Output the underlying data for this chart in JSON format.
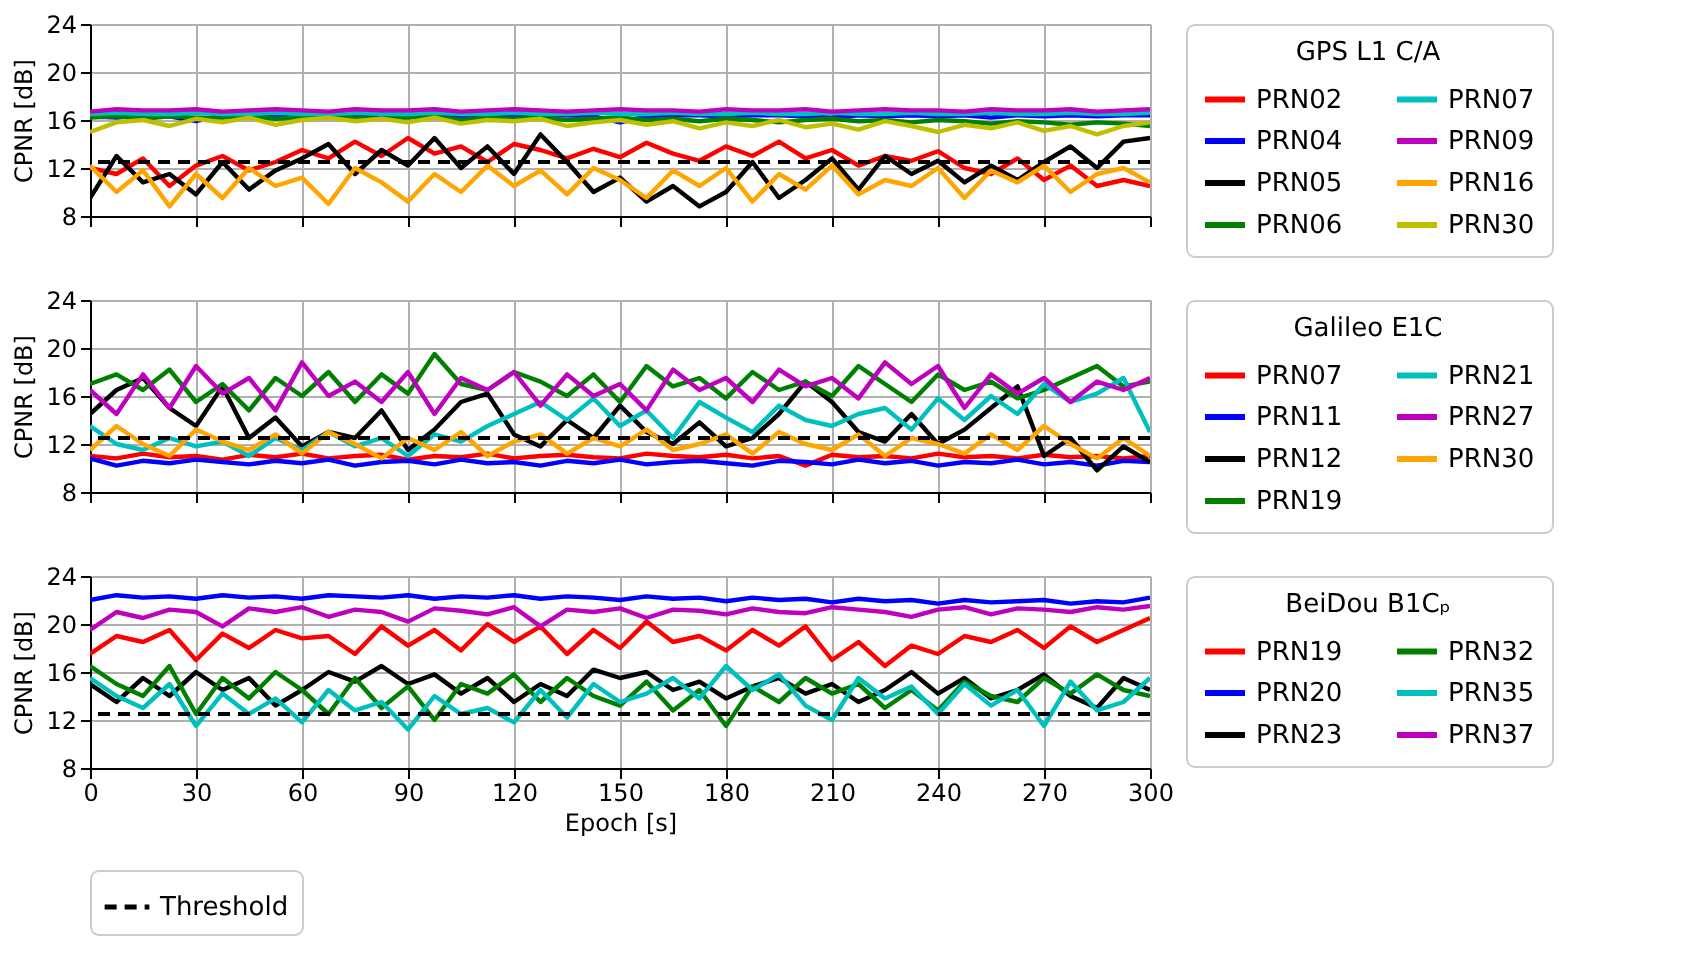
{
  "chart_data": [
    {
      "type": "line",
      "ylabel": "CPNR [dB]",
      "legend_title": "GPS L1 C/A",
      "legend": "right",
      "grid": true,
      "tick_labels": "y",
      "marker": "none",
      "line_style": "solid",
      "xlim": [
        0,
        300
      ],
      "xticks": [
        0,
        30,
        60,
        90,
        120,
        150,
        180,
        210,
        240,
        270,
        300
      ],
      "ylim": [
        8,
        24
      ],
      "yticks": [
        8,
        12,
        16,
        20,
        24
      ],
      "x": [
        0,
        7.5,
        15,
        22.5,
        30,
        37.5,
        45,
        52.5,
        60,
        67.5,
        75,
        82.5,
        90,
        97.5,
        105,
        112.5,
        120,
        127.5,
        135,
        142.5,
        150,
        157.5,
        165,
        172.5,
        180,
        187.5,
        195,
        202.5,
        210,
        217.5,
        225,
        232.5,
        240,
        247.5,
        255,
        262.5,
        270,
        277.5,
        285,
        292.5,
        300
      ],
      "ref_lines": [
        {
          "axis": "y",
          "value": 12.5,
          "color": "#000000",
          "line_style": "dashed"
        }
      ],
      "series": [
        {
          "name": "PRN02",
          "color": "#ff0000",
          "values": [
            12.0,
            11.5,
            12.8,
            10.5,
            12.2,
            13.0,
            11.8,
            12.5,
            13.5,
            12.8,
            14.2,
            13.0,
            14.5,
            13.2,
            13.8,
            12.5,
            14.0,
            13.5,
            12.8,
            13.6,
            12.9,
            14.1,
            13.2,
            12.6,
            13.8,
            13.0,
            14.2,
            12.8,
            13.5,
            12.2,
            13.0,
            12.6,
            13.4,
            12.0,
            11.5,
            12.8,
            11.0,
            12.2,
            10.5,
            11.0,
            10.5
          ]
        },
        {
          "name": "PRN04",
          "color": "#0000ff",
          "values": [
            16.3,
            16.2,
            16.4,
            16.3,
            15.9,
            16.4,
            16.3,
            16.4,
            16.3,
            16.4,
            16.4,
            16.3,
            16.4,
            16.4,
            16.3,
            16.4,
            16.3,
            16.4,
            16.4,
            16.3,
            15.8,
            16.3,
            16.4,
            16.4,
            16.3,
            16.4,
            16.4,
            16.3,
            16.2,
            16.4,
            16.3,
            16.4,
            16.3,
            16.4,
            16.2,
            16.4,
            16.3,
            16.4,
            16.3,
            16.4,
            16.4
          ]
        },
        {
          "name": "PRN05",
          "color": "#000000",
          "values": [
            9.5,
            13.0,
            10.8,
            11.5,
            9.8,
            12.5,
            10.2,
            11.8,
            12.8,
            14.0,
            11.5,
            13.5,
            12.2,
            14.5,
            12.0,
            13.8,
            11.5,
            14.8,
            12.5,
            10.0,
            11.2,
            9.2,
            10.5,
            8.8,
            10.0,
            12.5,
            9.5,
            11.0,
            12.8,
            10.2,
            13.0,
            11.5,
            12.6,
            10.8,
            12.2,
            11.0,
            12.5,
            13.8,
            12.0,
            14.2,
            14.5
          ]
        },
        {
          "name": "PRN06",
          "color": "#008000",
          "values": [
            16.2,
            16.3,
            16.1,
            16.3,
            16.2,
            16.2,
            16.3,
            16.1,
            16.2,
            16.3,
            16.2,
            16.1,
            16.2,
            16.3,
            16.0,
            16.2,
            16.1,
            16.2,
            16.0,
            16.1,
            16.2,
            16.0,
            16.1,
            15.9,
            16.1,
            16.0,
            15.8,
            16.0,
            16.1,
            15.9,
            16.0,
            15.8,
            16.0,
            15.9,
            15.7,
            15.9,
            15.8,
            15.6,
            15.8,
            15.7,
            15.5
          ]
        },
        {
          "name": "PRN07",
          "color": "#00bfbf",
          "values": [
            16.5,
            16.6,
            16.5,
            16.5,
            16.6,
            16.5,
            16.5,
            16.6,
            16.5,
            16.5,
            16.6,
            16.5,
            16.5,
            16.6,
            16.5,
            16.5,
            16.6,
            16.5,
            16.5,
            16.6,
            16.5,
            16.5,
            16.6,
            16.5,
            16.5,
            16.6,
            16.5,
            16.5,
            16.6,
            16.5,
            16.5,
            16.6,
            16.5,
            16.5,
            16.6,
            16.5,
            16.5,
            16.6,
            16.5,
            16.5,
            16.6
          ]
        },
        {
          "name": "PRN09",
          "color": "#bf00bf",
          "values": [
            16.7,
            16.9,
            16.8,
            16.8,
            16.9,
            16.7,
            16.8,
            16.9,
            16.8,
            16.7,
            16.9,
            16.8,
            16.8,
            16.9,
            16.7,
            16.8,
            16.9,
            16.8,
            16.7,
            16.8,
            16.9,
            16.8,
            16.8,
            16.7,
            16.9,
            16.8,
            16.8,
            16.9,
            16.7,
            16.8,
            16.9,
            16.8,
            16.8,
            16.7,
            16.9,
            16.8,
            16.8,
            16.9,
            16.7,
            16.8,
            16.9
          ]
        },
        {
          "name": "PRN16",
          "color": "#ffa500",
          "values": [
            12.2,
            10.0,
            11.8,
            8.8,
            11.5,
            9.5,
            12.0,
            10.5,
            11.2,
            9.0,
            12.0,
            10.8,
            9.2,
            11.5,
            10.0,
            12.2,
            10.5,
            11.8,
            9.8,
            12.0,
            11.0,
            9.5,
            11.8,
            10.5,
            12.0,
            9.2,
            11.5,
            10.2,
            12.2,
            9.8,
            11.0,
            10.5,
            12.0,
            9.5,
            11.8,
            10.8,
            12.2,
            10.0,
            11.5,
            12.0,
            10.8
          ]
        },
        {
          "name": "PRN30",
          "color": "#bfbf00",
          "values": [
            15.0,
            15.8,
            16.0,
            15.5,
            16.1,
            15.8,
            16.2,
            15.6,
            16.0,
            16.2,
            15.9,
            16.1,
            15.8,
            16.2,
            15.7,
            16.0,
            15.9,
            16.1,
            15.5,
            15.8,
            16.0,
            15.6,
            15.9,
            15.3,
            15.8,
            15.5,
            16.0,
            15.4,
            15.7,
            15.2,
            15.9,
            15.5,
            15.0,
            15.6,
            15.3,
            15.8,
            15.1,
            15.5,
            14.8,
            15.5,
            15.8
          ]
        }
      ]
    },
    {
      "type": "line",
      "ylabel": "CPNR [dB]",
      "legend_title": "Galileo E1C",
      "legend": "right",
      "grid": true,
      "tick_labels": "y",
      "marker": "none",
      "line_style": "solid",
      "xlim": [
        0,
        300
      ],
      "xticks": [
        0,
        30,
        60,
        90,
        120,
        150,
        180,
        210,
        240,
        270,
        300
      ],
      "ylim": [
        8,
        24
      ],
      "yticks": [
        8,
        12,
        16,
        20,
        24
      ],
      "x": [
        0,
        7.5,
        15,
        22.5,
        30,
        37.5,
        45,
        52.5,
        60,
        67.5,
        75,
        82.5,
        90,
        97.5,
        105,
        112.5,
        120,
        127.5,
        135,
        142.5,
        150,
        157.5,
        165,
        172.5,
        180,
        187.5,
        195,
        202.5,
        210,
        217.5,
        225,
        232.5,
        240,
        247.5,
        255,
        262.5,
        270,
        277.5,
        285,
        292.5,
        300
      ],
      "ref_lines": [
        {
          "axis": "y",
          "value": 12.5,
          "color": "#000000",
          "line_style": "dashed"
        }
      ],
      "series": [
        {
          "name": "PRN07",
          "color": "#ff0000",
          "values": [
            11.0,
            10.8,
            11.2,
            10.9,
            11.0,
            10.7,
            11.1,
            10.9,
            11.2,
            10.8,
            11.0,
            11.1,
            10.7,
            11.0,
            10.9,
            11.2,
            10.8,
            11.0,
            11.1,
            10.9,
            10.8,
            11.2,
            11.0,
            10.9,
            11.1,
            10.8,
            11.0,
            10.2,
            11.1,
            10.9,
            11.0,
            10.8,
            11.2,
            10.9,
            11.0,
            10.8,
            11.1,
            10.9,
            11.0,
            10.8,
            11.0
          ]
        },
        {
          "name": "PRN11",
          "color": "#0000ff",
          "values": [
            10.8,
            10.2,
            10.6,
            10.4,
            10.7,
            10.5,
            10.3,
            10.6,
            10.4,
            10.7,
            10.2,
            10.5,
            10.6,
            10.3,
            10.7,
            10.4,
            10.5,
            10.2,
            10.6,
            10.4,
            10.7,
            10.3,
            10.5,
            10.6,
            10.4,
            10.2,
            10.6,
            10.5,
            10.3,
            10.7,
            10.4,
            10.6,
            10.2,
            10.5,
            10.4,
            10.7,
            10.3,
            10.5,
            10.2,
            10.6,
            10.5
          ]
        },
        {
          "name": "PRN12",
          "color": "#000000",
          "values": [
            14.5,
            16.5,
            17.5,
            15.0,
            13.5,
            16.8,
            12.5,
            14.2,
            11.8,
            13.0,
            12.5,
            14.8,
            11.5,
            13.2,
            15.5,
            16.2,
            12.8,
            11.8,
            14.0,
            12.5,
            15.2,
            13.0,
            12.0,
            13.8,
            11.8,
            12.5,
            14.5,
            17.2,
            15.5,
            13.0,
            12.2,
            14.5,
            12.0,
            13.2,
            15.0,
            16.8,
            11.0,
            12.5,
            9.8,
            11.8,
            10.5
          ]
        },
        {
          "name": "PRN19",
          "color": "#008000",
          "values": [
            17.0,
            17.8,
            16.5,
            18.2,
            15.5,
            17.0,
            14.8,
            17.5,
            16.0,
            18.0,
            15.5,
            17.8,
            16.2,
            19.5,
            17.0,
            16.5,
            18.0,
            17.2,
            16.0,
            17.8,
            15.5,
            18.5,
            16.8,
            17.5,
            15.8,
            18.0,
            16.5,
            17.2,
            16.0,
            18.5,
            17.0,
            15.5,
            17.8,
            16.5,
            17.2,
            15.8,
            16.5,
            17.5,
            18.5,
            16.8,
            17.2
          ]
        },
        {
          "name": "PRN21",
          "color": "#00bfbf",
          "values": [
            13.5,
            12.0,
            11.5,
            12.5,
            11.8,
            12.2,
            11.0,
            12.5,
            11.5,
            13.0,
            11.8,
            12.5,
            11.0,
            12.8,
            12.2,
            13.5,
            14.5,
            15.5,
            14.0,
            15.8,
            13.5,
            14.8,
            12.5,
            15.5,
            14.2,
            13.0,
            15.2,
            14.0,
            13.5,
            14.5,
            15.0,
            13.2,
            15.8,
            14.0,
            16.0,
            14.5,
            17.0,
            15.5,
            16.2,
            17.5,
            13.0
          ]
        },
        {
          "name": "PRN27",
          "color": "#bf00bf",
          "values": [
            16.5,
            14.5,
            17.8,
            15.0,
            18.5,
            16.2,
            17.5,
            14.8,
            18.8,
            16.0,
            17.2,
            15.5,
            18.0,
            14.5,
            17.5,
            16.5,
            18.0,
            15.2,
            17.8,
            16.0,
            17.0,
            14.8,
            18.2,
            16.5,
            17.5,
            15.5,
            18.2,
            16.8,
            17.5,
            15.8,
            18.8,
            17.0,
            18.5,
            15.0,
            17.8,
            16.2,
            17.5,
            15.5,
            17.2,
            16.5,
            17.5
          ]
        },
        {
          "name": "PRN30",
          "color": "#ffa500",
          "values": [
            11.5,
            13.5,
            12.0,
            11.0,
            13.2,
            12.2,
            11.5,
            12.8,
            11.2,
            13.0,
            12.0,
            10.8,
            12.5,
            11.5,
            13.0,
            11.0,
            12.2,
            12.8,
            11.2,
            12.5,
            11.8,
            13.2,
            11.5,
            12.0,
            12.8,
            11.2,
            13.0,
            12.0,
            11.5,
            12.8,
            11.0,
            12.5,
            12.0,
            11.2,
            12.8,
            11.5,
            13.5,
            12.0,
            10.8,
            12.5,
            11.0
          ]
        }
      ]
    },
    {
      "type": "line",
      "ylabel": "CPNR [dB]",
      "xlabel": "Epoch [s]",
      "legend_title": "BeiDou B1Cₚ",
      "legend": "right",
      "grid": true,
      "marker": "none",
      "line_style": "solid",
      "xlim": [
        0,
        300
      ],
      "xticks": [
        0,
        30,
        60,
        90,
        120,
        150,
        180,
        210,
        240,
        270,
        300
      ],
      "ylim": [
        8,
        24
      ],
      "yticks": [
        8,
        12,
        16,
        20,
        24
      ],
      "x": [
        0,
        7.5,
        15,
        22.5,
        30,
        37.5,
        45,
        52.5,
        60,
        67.5,
        75,
        82.5,
        90,
        97.5,
        105,
        112.5,
        120,
        127.5,
        135,
        142.5,
        150,
        157.5,
        165,
        172.5,
        180,
        187.5,
        195,
        202.5,
        210,
        217.5,
        225,
        232.5,
        240,
        247.5,
        255,
        262.5,
        270,
        277.5,
        285,
        292.5,
        300
      ],
      "ref_lines": [
        {
          "axis": "y",
          "value": 12.5,
          "label": "Threshold",
          "color": "#000000",
          "line_style": "dashed"
        }
      ],
      "series": [
        {
          "name": "PRN19",
          "color": "#ff0000",
          "values": [
            17.5,
            19.0,
            18.5,
            19.5,
            17.0,
            19.2,
            18.0,
            19.5,
            18.8,
            19.0,
            17.5,
            19.8,
            18.2,
            19.5,
            17.8,
            20.0,
            18.5,
            19.8,
            17.5,
            19.5,
            18.0,
            20.2,
            18.5,
            19.0,
            17.8,
            19.5,
            18.2,
            19.8,
            17.0,
            18.5,
            16.5,
            18.2,
            17.5,
            19.0,
            18.5,
            19.5,
            18.0,
            19.8,
            18.5,
            19.5,
            20.5
          ]
        },
        {
          "name": "PRN20",
          "color": "#0000ff",
          "values": [
            22.0,
            22.4,
            22.2,
            22.3,
            22.1,
            22.4,
            22.2,
            22.3,
            22.1,
            22.4,
            22.3,
            22.2,
            22.4,
            22.1,
            22.3,
            22.2,
            22.4,
            22.1,
            22.3,
            22.2,
            22.0,
            22.3,
            22.1,
            22.2,
            21.9,
            22.2,
            22.0,
            22.1,
            21.8,
            22.1,
            21.9,
            22.0,
            21.7,
            22.0,
            21.8,
            21.9,
            22.0,
            21.7,
            21.9,
            21.8,
            22.2
          ]
        },
        {
          "name": "PRN23",
          "color": "#000000",
          "values": [
            15.0,
            13.5,
            15.5,
            14.0,
            16.0,
            14.5,
            15.5,
            13.2,
            14.5,
            16.0,
            15.2,
            16.5,
            15.0,
            15.8,
            14.2,
            15.5,
            13.5,
            15.0,
            14.0,
            16.2,
            15.5,
            16.0,
            14.5,
            15.2,
            13.8,
            14.8,
            15.5,
            14.2,
            15.0,
            13.5,
            14.5,
            16.0,
            14.2,
            15.5,
            13.8,
            14.5,
            15.8,
            14.0,
            13.0,
            15.5,
            14.5
          ]
        },
        {
          "name": "PRN32",
          "color": "#008000",
          "values": [
            16.5,
            15.0,
            14.0,
            16.5,
            12.5,
            15.5,
            13.8,
            16.0,
            14.5,
            12.5,
            15.5,
            13.0,
            14.8,
            12.0,
            15.0,
            14.2,
            15.8,
            13.5,
            15.5,
            14.0,
            13.2,
            15.2,
            12.8,
            14.5,
            11.5,
            14.8,
            13.5,
            15.5,
            14.2,
            15.0,
            13.0,
            14.5,
            12.8,
            15.2,
            14.0,
            13.5,
            15.5,
            14.2,
            15.8,
            14.5,
            14.0
          ]
        },
        {
          "name": "PRN35",
          "color": "#00bfbf",
          "values": [
            15.5,
            14.0,
            13.0,
            15.0,
            11.5,
            14.2,
            12.5,
            13.8,
            11.8,
            14.5,
            12.8,
            13.5,
            11.2,
            14.0,
            12.5,
            13.0,
            11.8,
            14.5,
            12.2,
            15.0,
            13.5,
            14.2,
            15.5,
            13.8,
            16.5,
            14.5,
            15.8,
            13.2,
            12.0,
            15.5,
            13.8,
            14.8,
            12.5,
            15.0,
            13.2,
            14.5,
            11.5,
            15.2,
            12.8,
            13.5,
            15.5
          ]
        },
        {
          "name": "PRN37",
          "color": "#bf00bf",
          "values": [
            19.5,
            21.0,
            20.5,
            21.2,
            21.0,
            19.8,
            21.3,
            21.0,
            21.4,
            20.6,
            21.2,
            21.0,
            20.2,
            21.3,
            21.1,
            20.8,
            21.4,
            19.8,
            21.2,
            21.0,
            21.3,
            20.5,
            21.2,
            21.1,
            20.8,
            21.3,
            21.0,
            20.9,
            21.4,
            21.2,
            21.0,
            20.6,
            21.2,
            21.4,
            20.8,
            21.3,
            21.2,
            21.0,
            21.4,
            21.2,
            21.5
          ]
        }
      ]
    }
  ]
}
